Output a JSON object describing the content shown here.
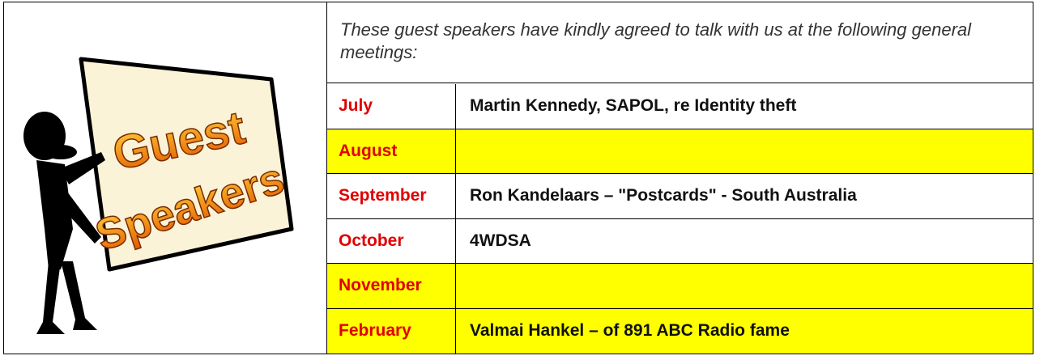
{
  "image": {
    "line1": "Guest",
    "line2": "Speakers"
  },
  "intro": "These guest speakers have kindly agreed to talk with us at the following general meetings:",
  "rows": [
    {
      "month": "July",
      "speaker": "Martin Kennedy, SAPOL, re Identity theft",
      "highlight": false
    },
    {
      "month": "August",
      "highlight": true
    },
    {
      "month": "September",
      "speaker": "Ron Kandelaars – \"Postcards\" - South Australia",
      "highlight": false
    },
    {
      "month": "October",
      "speaker": "4WDSA",
      "highlight": false
    },
    {
      "month": "November",
      "highlight": true
    },
    {
      "month": "February",
      "speaker": "Valmai Hankel – of 891 ABC Radio fame",
      "highlight": true
    }
  ]
}
